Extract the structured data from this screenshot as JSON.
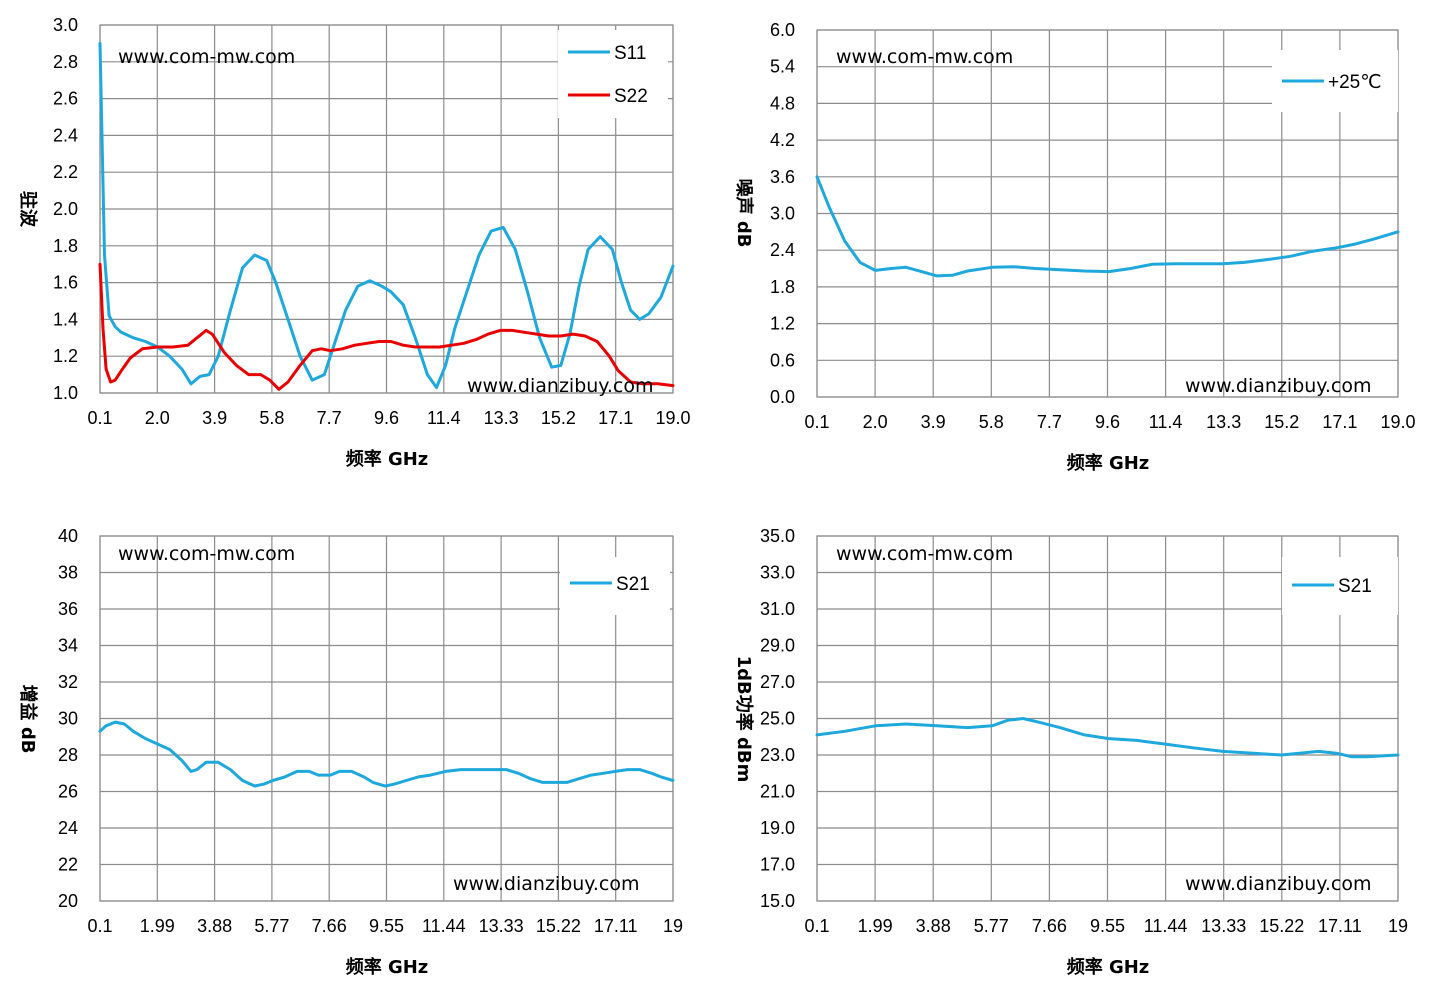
{
  "chart_data": [
    {
      "type": "line",
      "id": "vswr",
      "title": "",
      "xlabel": "频率 GHz",
      "ylabel": "驻波",
      "x_ticks": [
        "0.1",
        "2.0",
        "3.9",
        "5.8",
        "7.7",
        "9.6",
        "11.4",
        "13.3",
        "15.2",
        "17.1",
        "19.0"
      ],
      "y_ticks": [
        "1.0",
        "1.2",
        "1.4",
        "1.6",
        "1.8",
        "2.0",
        "2.2",
        "2.4",
        "2.6",
        "2.8",
        "3.0"
      ],
      "xlim": [
        0.1,
        19.0
      ],
      "ylim": [
        1.0,
        3.0
      ],
      "grid": true,
      "legend": "top-right",
      "watermarks": [
        "www.com-mw.com",
        "www.dianzibuy.com"
      ],
      "series": [
        {
          "name": "S11",
          "color": "#1ea8dc",
          "x": [
            0.1,
            0.25,
            0.4,
            0.6,
            0.8,
            1.2,
            1.6,
            2.0,
            2.4,
            2.8,
            3.1,
            3.4,
            3.7,
            4.0,
            4.4,
            4.8,
            5.2,
            5.6,
            5.9,
            6.3,
            6.7,
            7.1,
            7.5,
            7.8,
            8.2,
            8.6,
            9.0,
            9.4,
            9.7,
            10.1,
            10.5,
            10.9,
            11.2,
            11.5,
            11.8,
            12.2,
            12.6,
            13.0,
            13.4,
            13.8,
            14.2,
            14.6,
            15.0,
            15.3,
            15.6,
            15.9,
            16.2,
            16.6,
            17.0,
            17.3,
            17.6,
            17.9,
            18.2,
            18.6,
            19.0
          ],
          "values": [
            2.9,
            1.75,
            1.42,
            1.36,
            1.33,
            1.3,
            1.28,
            1.25,
            1.2,
            1.13,
            1.05,
            1.09,
            1.1,
            1.2,
            1.45,
            1.68,
            1.75,
            1.72,
            1.6,
            1.4,
            1.2,
            1.07,
            1.1,
            1.25,
            1.45,
            1.58,
            1.61,
            1.58,
            1.55,
            1.48,
            1.3,
            1.1,
            1.03,
            1.15,
            1.35,
            1.55,
            1.75,
            1.88,
            1.9,
            1.78,
            1.55,
            1.3,
            1.14,
            1.15,
            1.32,
            1.58,
            1.78,
            1.85,
            1.78,
            1.6,
            1.45,
            1.4,
            1.43,
            1.52,
            1.69
          ]
        },
        {
          "name": "S22",
          "color": "#e80000",
          "x": [
            0.1,
            0.2,
            0.3,
            0.45,
            0.6,
            0.8,
            1.1,
            1.5,
            2.0,
            2.5,
            3.0,
            3.3,
            3.6,
            3.8,
            4.2,
            4.6,
            5.0,
            5.4,
            5.7,
            6.0,
            6.3,
            6.7,
            7.1,
            7.4,
            7.7,
            8.1,
            8.5,
            8.9,
            9.3,
            9.7,
            10.1,
            10.5,
            10.9,
            11.3,
            11.7,
            12.1,
            12.5,
            12.9,
            13.3,
            13.7,
            14.1,
            14.5,
            14.9,
            15.3,
            15.7,
            16.1,
            16.5,
            16.9,
            17.2,
            17.6,
            18.0,
            18.5,
            19.0
          ],
          "values": [
            1.7,
            1.35,
            1.13,
            1.06,
            1.07,
            1.12,
            1.19,
            1.24,
            1.25,
            1.25,
            1.26,
            1.3,
            1.34,
            1.32,
            1.22,
            1.15,
            1.1,
            1.1,
            1.07,
            1.02,
            1.06,
            1.15,
            1.23,
            1.24,
            1.23,
            1.24,
            1.26,
            1.27,
            1.28,
            1.28,
            1.26,
            1.25,
            1.25,
            1.25,
            1.26,
            1.27,
            1.29,
            1.32,
            1.34,
            1.34,
            1.33,
            1.32,
            1.31,
            1.31,
            1.32,
            1.31,
            1.28,
            1.2,
            1.12,
            1.06,
            1.05,
            1.05,
            1.04
          ]
        }
      ]
    },
    {
      "type": "line",
      "id": "noise",
      "title": "",
      "xlabel": "频率 GHz",
      "ylabel": "噪声 dB",
      "x_ticks": [
        "0.1",
        "2.0",
        "3.9",
        "5.8",
        "7.7",
        "9.6",
        "11.4",
        "13.3",
        "15.2",
        "17.1",
        "19.0"
      ],
      "y_ticks": [
        "0.0",
        "0.6",
        "1.2",
        "1.8",
        "2.4",
        "3.0",
        "3.6",
        "4.2",
        "4.8",
        "5.4",
        "6.0"
      ],
      "xlim": [
        0.1,
        19.0
      ],
      "ylim": [
        0.0,
        6.0
      ],
      "grid": true,
      "legend": "top-right",
      "watermarks": [
        "www.com-mw.com",
        "www.dianzibuy.com"
      ],
      "series": [
        {
          "name": "+25℃",
          "color": "#1ea8dc",
          "x": [
            0.1,
            0.5,
            1.0,
            1.5,
            2.0,
            2.5,
            3.0,
            3.5,
            4.0,
            4.5,
            5.0,
            5.8,
            6.5,
            7.2,
            8.0,
            8.8,
            9.6,
            10.3,
            11.0,
            11.8,
            12.6,
            13.3,
            14.0,
            14.8,
            15.5,
            16.2,
            17.0,
            17.6,
            18.2,
            19.0
          ],
          "values": [
            3.6,
            3.1,
            2.55,
            2.2,
            2.07,
            2.1,
            2.12,
            2.05,
            1.98,
            1.99,
            2.06,
            2.12,
            2.13,
            2.1,
            2.08,
            2.06,
            2.05,
            2.1,
            2.17,
            2.18,
            2.18,
            2.18,
            2.2,
            2.25,
            2.3,
            2.38,
            2.44,
            2.5,
            2.58,
            2.7
          ]
        }
      ]
    },
    {
      "type": "line",
      "id": "gain",
      "title": "",
      "xlabel": "频率 GHz",
      "ylabel": "增益 dB",
      "x_ticks": [
        "0.1",
        "1.99",
        "3.88",
        "5.77",
        "7.66",
        "9.55",
        "11.44",
        "13.33",
        "15.22",
        "17.11",
        "19"
      ],
      "y_ticks": [
        "20",
        "22",
        "24",
        "26",
        "28",
        "30",
        "32",
        "34",
        "36",
        "38",
        "40"
      ],
      "xlim": [
        0.1,
        19.0
      ],
      "ylim": [
        20,
        40
      ],
      "grid": true,
      "legend": "top-right",
      "watermarks": [
        "www.com-mw.com",
        "www.dianzibuy.com"
      ],
      "series": [
        {
          "name": "S21",
          "color": "#1ea8dc",
          "x": [
            0.1,
            0.3,
            0.6,
            0.9,
            1.2,
            1.6,
            2.0,
            2.4,
            2.8,
            3.1,
            3.3,
            3.6,
            4.0,
            4.4,
            4.8,
            5.2,
            5.5,
            5.8,
            6.2,
            6.6,
            7.0,
            7.3,
            7.7,
            8.0,
            8.4,
            8.8,
            9.1,
            9.5,
            9.8,
            10.2,
            10.6,
            11.0,
            11.5,
            12.0,
            12.5,
            13.0,
            13.5,
            13.9,
            14.3,
            14.7,
            15.1,
            15.5,
            15.9,
            16.3,
            16.7,
            17.1,
            17.5,
            17.9,
            18.3,
            18.6,
            19.0
          ],
          "values": [
            29.3,
            29.6,
            29.8,
            29.7,
            29.3,
            28.9,
            28.6,
            28.3,
            27.7,
            27.1,
            27.2,
            27.6,
            27.6,
            27.2,
            26.6,
            26.3,
            26.4,
            26.6,
            26.8,
            27.1,
            27.1,
            26.9,
            26.9,
            27.1,
            27.1,
            26.8,
            26.5,
            26.3,
            26.4,
            26.6,
            26.8,
            26.9,
            27.1,
            27.2,
            27.2,
            27.2,
            27.2,
            27.0,
            26.7,
            26.5,
            26.5,
            26.5,
            26.7,
            26.9,
            27.0,
            27.1,
            27.2,
            27.2,
            27.0,
            26.8,
            26.6
          ]
        }
      ]
    },
    {
      "type": "line",
      "id": "p1db",
      "title": "",
      "xlabel": "频率 GHz",
      "ylabel": "1dB功率 dBm",
      "x_ticks": [
        "0.1",
        "1.99",
        "3.88",
        "5.77",
        "7.66",
        "9.55",
        "11.44",
        "13.33",
        "15.22",
        "17.11",
        "19"
      ],
      "y_ticks": [
        "15.0",
        "17.0",
        "19.0",
        "21.0",
        "23.0",
        "25.0",
        "27.0",
        "29.0",
        "31.0",
        "33.0",
        "35.0"
      ],
      "xlim": [
        0.1,
        19.0
      ],
      "ylim": [
        15.0,
        35.0
      ],
      "grid": true,
      "legend": "top-right",
      "watermarks": [
        "www.com-mw.com",
        "www.dianzibuy.com"
      ],
      "series": [
        {
          "name": "S21",
          "color": "#1ea8dc",
          "x": [
            0.1,
            1.0,
            2.0,
            3.0,
            4.0,
            5.0,
            5.8,
            6.3,
            6.8,
            7.3,
            8.0,
            8.8,
            9.6,
            10.5,
            11.4,
            12.3,
            13.3,
            14.3,
            15.2,
            15.8,
            16.4,
            17.0,
            17.5,
            18.0,
            18.5,
            19.0
          ],
          "values": [
            24.1,
            24.3,
            24.6,
            24.7,
            24.6,
            24.5,
            24.6,
            24.9,
            25.0,
            24.8,
            24.5,
            24.1,
            23.9,
            23.8,
            23.6,
            23.4,
            23.2,
            23.1,
            23.0,
            23.1,
            23.2,
            23.1,
            22.9,
            22.9,
            22.95,
            23.0
          ]
        }
      ]
    }
  ]
}
